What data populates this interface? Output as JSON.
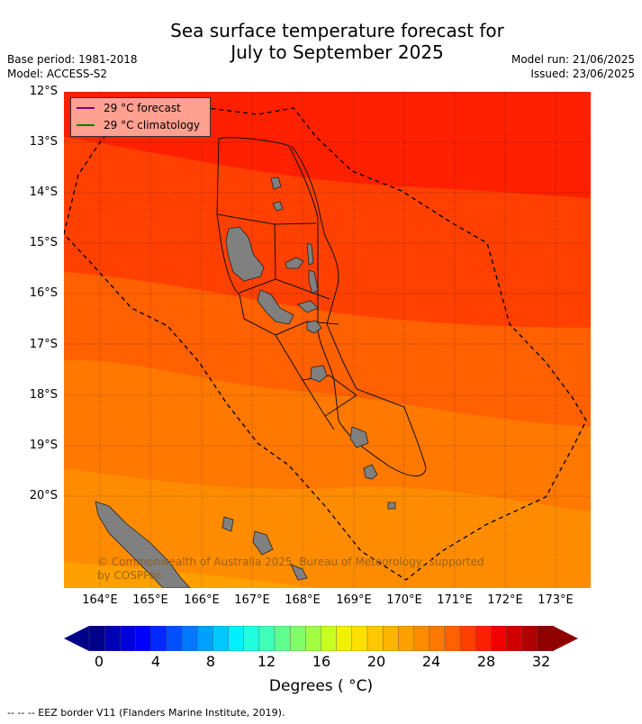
{
  "title": {
    "line1": "Sea surface temperature forecast for",
    "line2": "July to September 2025"
  },
  "meta_left": {
    "base_period": "Base period: 1981-2018",
    "model": "Model: ACCESS-S2"
  },
  "meta_right": {
    "model_run": "Model run: 21/06/2025",
    "issued": "Issued: 23/06/2025"
  },
  "map": {
    "lat_labels": [
      "12°S",
      "13°S",
      "14°S",
      "15°S",
      "16°S",
      "17°S",
      "18°S",
      "19°S",
      "20°S"
    ],
    "lon_labels": [
      "164°E",
      "165°E",
      "166°E",
      "167°E",
      "168°E",
      "169°E",
      "170°E",
      "171°E",
      "172°E",
      "173°E"
    ],
    "colors": {
      "band_29_30": "#ff2000",
      "band_28_29": "#ff4000",
      "band_27_28": "#ff6000",
      "band_26_27": "#ff7800",
      "band_25_26": "#ff8c00",
      "band_24_25": "#ffa000",
      "land": "#808080"
    }
  },
  "legend": {
    "items": [
      {
        "label": "29 °C  forecast",
        "color": "#800080"
      },
      {
        "label": "29 °C  climatology",
        "color": "#008000"
      }
    ]
  },
  "copyright": "© Commonwealth of Australia 2025, Bureau of Meteorology, supported by COSPPac",
  "colorbar": {
    "tick_labels": [
      "0",
      "4",
      "8",
      "12",
      "16",
      "20",
      "24",
      "28",
      "32"
    ],
    "colors": [
      "#00008b",
      "#0000b4",
      "#0000dc",
      "#0000ff",
      "#0028ff",
      "#0050ff",
      "#0078ff",
      "#00a0ff",
      "#00c8ff",
      "#00f0ff",
      "#20ffe0",
      "#40ffb8",
      "#60ff90",
      "#80ff68",
      "#a0ff40",
      "#c8ff20",
      "#f0f000",
      "#ffe000",
      "#ffc800",
      "#ffb400",
      "#ffa000",
      "#ff8c00",
      "#ff7800",
      "#ff6000",
      "#ff4000",
      "#ff2000",
      "#f00000",
      "#d00000",
      "#b00000",
      "#900000"
    ],
    "label": "Degrees ( °C)"
  },
  "footer": "--  --  -- EEZ border V11 (Flanders Marine Institute, 2019)."
}
